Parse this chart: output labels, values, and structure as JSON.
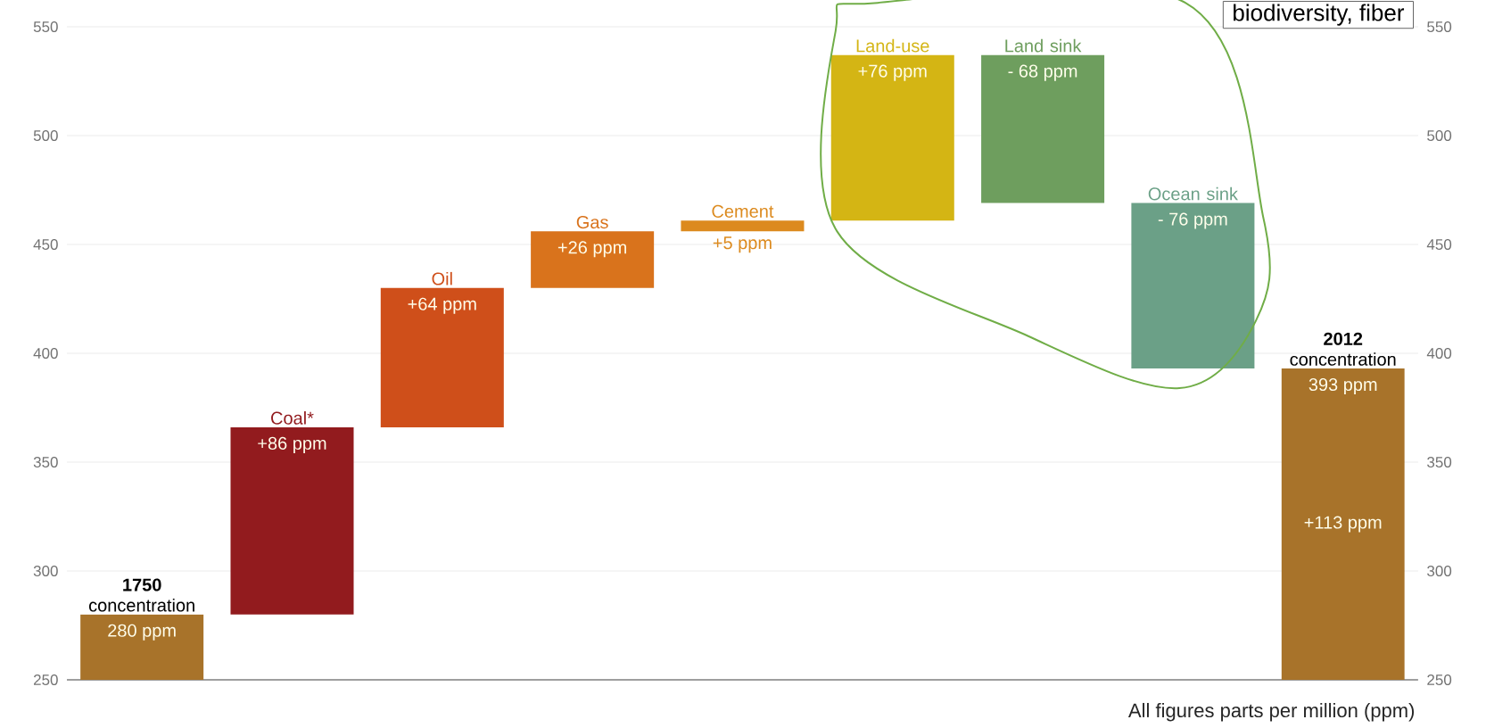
{
  "chart_data": {
    "type": "bar",
    "categories": [
      "**1750** concentration",
      "Coal*",
      "Oil",
      "Gas",
      "Cement",
      "Land-use",
      "Land sink",
      "Ocean sink",
      "**2012** concentration"
    ],
    "values": [
      280,
      86,
      64,
      26,
      5,
      76,
      -68,
      -76,
      393
    ],
    "base": [
      0,
      280,
      366,
      430,
      456,
      461,
      537,
      469,
      0
    ],
    "colors": [
      "#a8732a",
      "#921b1e",
      "#cf4f1a",
      "#d9731c",
      "#dc8a1e",
      "#d4b514",
      "#6e9e5e",
      "#6ba087",
      "#a8732a"
    ],
    "value_labels": [
      "280 ppm",
      "+86 ppm",
      "+64 ppm",
      "+26 ppm",
      "+5 ppm",
      "+76 ppm",
      "- 68 ppm",
      "- 76 ppm",
      "393 ppm"
    ],
    "ylim": [
      250,
      550
    ],
    "yticks": [
      250,
      300,
      350,
      400,
      450,
      500,
      550
    ],
    "y2lim": [
      250,
      550
    ],
    "y2ticks": [
      250,
      300,
      350,
      400,
      450,
      500,
      550
    ],
    "grid": "y",
    "annotations": [
      "+113 ppm",
      "biodiversity, fiber",
      "All figures parts per million (ppm)"
    ]
  }
}
